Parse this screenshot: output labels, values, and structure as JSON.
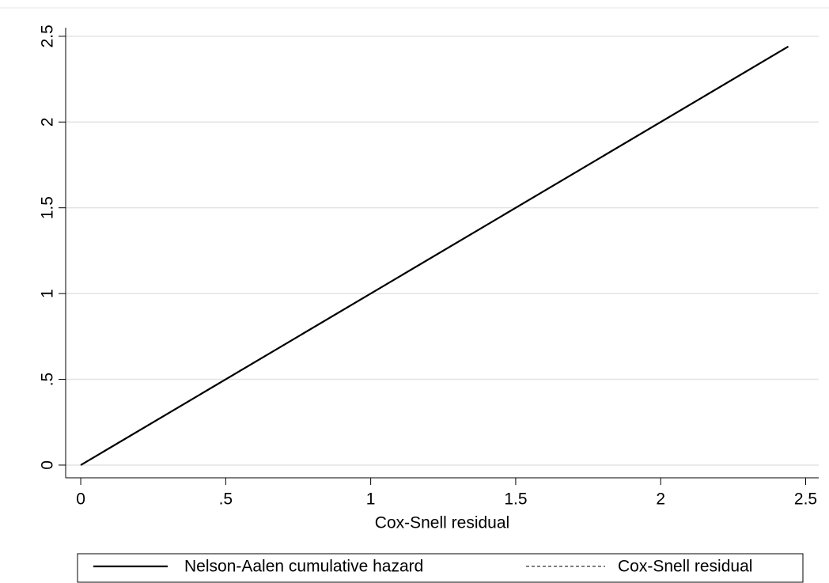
{
  "chart_data": {
    "type": "line",
    "xlabel": "Cox-Snell residual",
    "x": [
      0,
      2.44
    ],
    "series": [
      {
        "name": "Nelson-Aalen cumulative hazard",
        "color": "#000000",
        "dash": "solid",
        "values": [
          0,
          2.44
        ]
      },
      {
        "name": "Cox-Snell residual",
        "color": "#000000",
        "dash": "dashed",
        "values": [
          0,
          2.44
        ]
      }
    ],
    "xlim": [
      -0.052,
      2.545
    ],
    "ylim": [
      -0.074,
      2.55
    ],
    "xticks": [
      0,
      {
        "value": 0.5,
        "label": ".5"
      },
      1,
      1.5,
      2,
      2.5
    ],
    "yticks": [
      0,
      {
        "value": 0.5,
        "label": ".5"
      },
      1,
      1.5,
      2,
      2.5
    ],
    "grid": true,
    "legend": "bottom"
  }
}
